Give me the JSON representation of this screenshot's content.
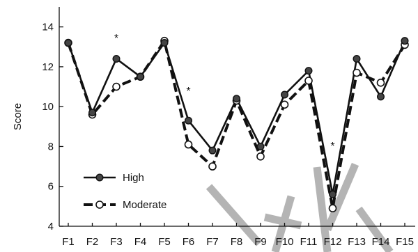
{
  "chart_data": {
    "type": "line",
    "title": "",
    "xlabel": "",
    "ylabel": "Score",
    "categories": [
      "F1",
      "F2",
      "F3",
      "F4",
      "F5",
      "F6",
      "F7",
      "F8",
      "F9",
      "F10",
      "F11",
      "F12",
      "F13",
      "F14",
      "F15"
    ],
    "ylim": [
      4,
      15
    ],
    "yticks": [
      "4",
      "6",
      "8",
      "10",
      "12",
      "14"
    ],
    "series": [
      {
        "name": "High",
        "style": "solid",
        "marker": "filled-circle",
        "values": [
          13.2,
          9.7,
          12.4,
          11.5,
          13.2,
          9.3,
          7.8,
          10.4,
          8.0,
          10.6,
          11.8,
          5.6,
          12.4,
          10.5,
          13.3
        ]
      },
      {
        "name": "Moderate",
        "style": "dashed",
        "marker": "open-circle",
        "values": [
          13.2,
          9.6,
          11.0,
          11.5,
          13.3,
          8.1,
          7.0,
          10.3,
          7.5,
          10.1,
          11.3,
          4.9,
          11.7,
          11.2,
          13.1
        ]
      }
    ],
    "annotations": [
      {
        "text": "*",
        "category": "F3"
      },
      {
        "text": "*",
        "category": "F6"
      },
      {
        "text": "*",
        "category": "F12"
      }
    ],
    "legend_position": "lower-left",
    "grid": false,
    "color": "#111111",
    "watermark_color": "#b0b0b0"
  }
}
